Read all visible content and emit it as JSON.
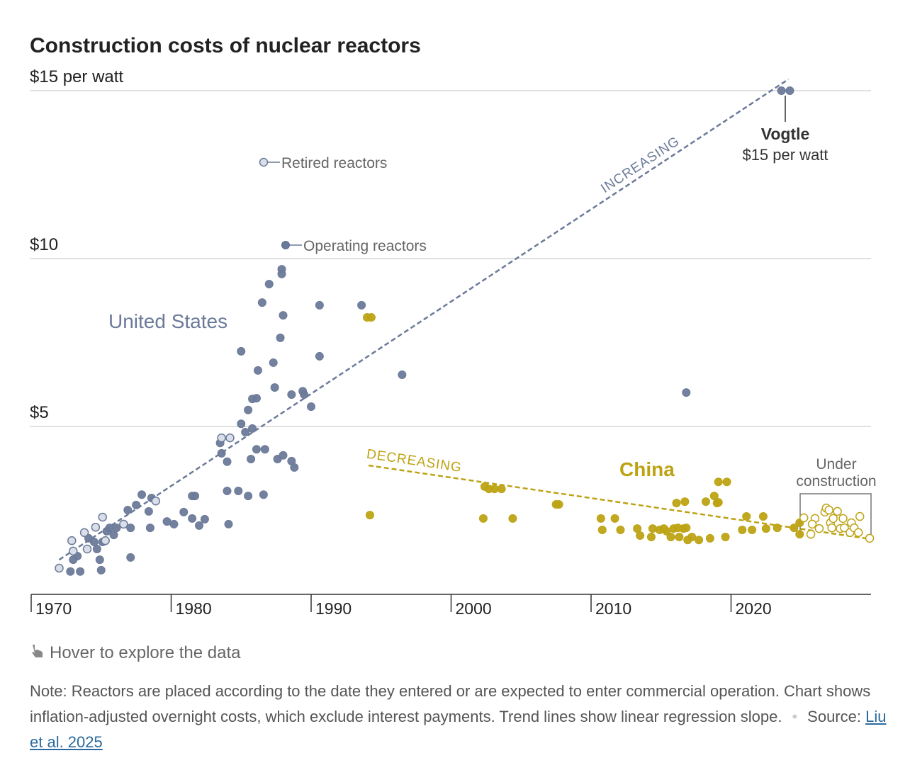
{
  "chart_data": {
    "type": "scatter",
    "title": "Construction costs of nuclear reactors",
    "xlim": [
      1970,
      2030
    ],
    "ylim": [
      0,
      15
    ],
    "xticks": [
      1970,
      1980,
      1990,
      2000,
      2010,
      2020
    ],
    "yticks": [
      {
        "value": 5,
        "label": "$5"
      },
      {
        "value": 10,
        "label": "$10"
      },
      {
        "value": 15,
        "label": "$15 per watt"
      }
    ],
    "grid": true,
    "legend": [
      {
        "label": "Retired reactors",
        "filled": false
      },
      {
        "label": "Operating reactors",
        "filled": true
      }
    ],
    "groups": [
      {
        "label": "United States",
        "color": "#6b7a99",
        "light": "#d9dee9",
        "series": [
          {
            "name": "Operating reactors",
            "filled": true,
            "x": [
              1972.8,
              1973.5,
              1973.0,
              1973.3,
              1974.1,
              1974.5,
              1974.7,
              1974.9,
              1975.0,
              1975.1,
              1975.4,
              1975.6,
              1975.9,
              1976.1,
              1976.9,
              1977.1,
              1977.1,
              1977.5,
              1977.9,
              1978.4,
              1978.5,
              1978.6,
              1979.7,
              1980.2,
              1980.9,
              1981.5,
              1981.7,
              1981.5,
              1982.0,
              1982.4,
              1983.5,
              1983.6,
              1984.0,
              1984.0,
              1984.1,
              1984.8,
              1985.0,
              1985.0,
              1985.3,
              1985.5,
              1985.5,
              1985.7,
              1985.8,
              1985.8,
              1986.1,
              1986.1,
              1986.2,
              1986.5,
              1986.6,
              1986.7,
              1987.0,
              1987.3,
              1987.4,
              1987.6,
              1987.8,
              1987.9,
              1987.9,
              1988.0,
              1988.0,
              1988.6,
              1988.6,
              1988.8,
              1989.4,
              1989.5,
              1990.0,
              1990.6,
              1990.6,
              1993.6,
              1996.5,
              2016.8,
              2023.6,
              2024.2
            ],
            "values": [
              0.68,
              0.68,
              1.03,
              1.14,
              1.67,
              1.56,
              1.35,
              1.03,
              0.72,
              1.56,
              1.88,
              1.98,
              1.77,
              1.98,
              2.51,
              1.98,
              1.1,
              2.66,
              2.97,
              2.47,
              1.98,
              2.87,
              2.17,
              2.09,
              2.45,
              2.93,
              2.93,
              2.26,
              2.05,
              2.24,
              4.51,
              4.2,
              3.95,
              3.08,
              2.09,
              3.08,
              7.24,
              5.08,
              4.83,
              5.49,
              2.93,
              4.03,
              5.82,
              4.94,
              5.84,
              4.32,
              6.67,
              8.69,
              2.97,
              4.32,
              9.24,
              6.9,
              6.16,
              4.03,
              7.64,
              9.68,
              9.54,
              8.31,
              4.14,
              5.95,
              3.97,
              3.78,
              6.05,
              5.95,
              5.59,
              8.61,
              7.09,
              8.61,
              6.54,
              6.01,
              15.0,
              15.0
            ]
          },
          {
            "name": "Retired reactors",
            "filled": false,
            "x": [
              1972.0,
              1972.9,
              1973.0,
              1973.8,
              1974.0,
              1974.6,
              1975.1,
              1975.3,
              1976.6,
              1978.9,
              1983.6,
              1984.2
            ],
            "values": [
              0.78,
              1.6,
              1.29,
              1.84,
              1.35,
              2.0,
              2.3,
              1.6,
              2.09,
              2.78,
              4.66,
              4.66
            ]
          }
        ],
        "trend": {
          "label": "INCREASING",
          "x": [
            1972.0,
            2024.1
          ],
          "values": [
            1.03,
            15.34
          ]
        }
      },
      {
        "label": "China",
        "color": "#bda314",
        "light": "#ffffff",
        "series": [
          {
            "filled": true,
            "x": [
              1994.0,
              1994.3,
              1994.2,
              2002.4,
              2002.7,
              2003.1,
              2003.6,
              2002.3,
              2004.4,
              2007.5,
              2007.7,
              2010.7,
              2011.7,
              2010.8,
              2012.1,
              2013.3,
              2013.5,
              2014.3,
              2014.4,
              2014.9,
              2015.2,
              2015.4,
              2015.7,
              2015.9,
              2016.2,
              2016.3,
              2016.6,
              2016.8,
              2016.9,
              2017.2,
              2017.7,
              2018.5,
              2019.6,
              2016.1,
              2016.7,
              2018.2,
              2018.8,
              2019.0,
              2019.1,
              2019.1,
              2019.7,
              2020.8,
              2021.1,
              2021.5,
              2022.3,
              2022.5,
              2023.3,
              2024.5,
              2024.9,
              2024.9
            ],
            "values": [
              8.25,
              8.25,
              2.36,
              3.21,
              3.14,
              3.14,
              3.14,
              2.26,
              2.26,
              2.68,
              2.68,
              2.26,
              2.26,
              1.92,
              1.92,
              1.96,
              1.75,
              1.71,
              1.96,
              1.92,
              1.96,
              1.88,
              1.71,
              1.96,
              1.98,
              1.71,
              1.96,
              1.98,
              1.62,
              1.71,
              1.62,
              1.67,
              1.71,
              2.72,
              2.76,
              2.76,
              2.93,
              2.72,
              2.74,
              3.35,
              3.35,
              1.92,
              2.32,
              1.92,
              2.32,
              1.96,
              1.98,
              1.98,
              2.13,
              1.79
            ]
          },
          {
            "name": "Under construction",
            "filled": false,
            "x": [
              2025.2,
              2025.7,
              2026.0,
              2025.8,
              2026.3,
              2026.7,
              2026.8,
              2027.0,
              2027.1,
              2027.2,
              2027.3,
              2027.6,
              2027.8,
              2028.0,
              2028.1,
              2028.5,
              2028.6,
              2028.8,
              2029.1,
              2029.2,
              2029.9
            ],
            "values": [
              2.28,
              1.79,
              2.26,
              2.09,
              1.96,
              2.45,
              2.57,
              2.51,
              2.13,
              1.98,
              2.26,
              2.47,
              1.96,
              2.26,
              1.98,
              1.84,
              2.13,
              1.98,
              1.84,
              2.32,
              1.67
            ]
          }
        ],
        "trend": {
          "label": "DECREASING",
          "x": [
            1994.1,
            2029.9
          ],
          "values": [
            3.84,
            1.65
          ]
        }
      }
    ],
    "annotation": {
      "label": "Vogtle",
      "sublabel": "$15 per watt"
    },
    "hover_hint": "Hover to explore the data",
    "note": "Note: Reactors are placed according to the date they entered or are expected to enter commercial operation. Chart shows inflation-adjusted overnight costs, which exclude interest payments. Trend lines show linear regression slope.",
    "source_label": "Source:",
    "source_link": "Liu et al. 2025"
  }
}
